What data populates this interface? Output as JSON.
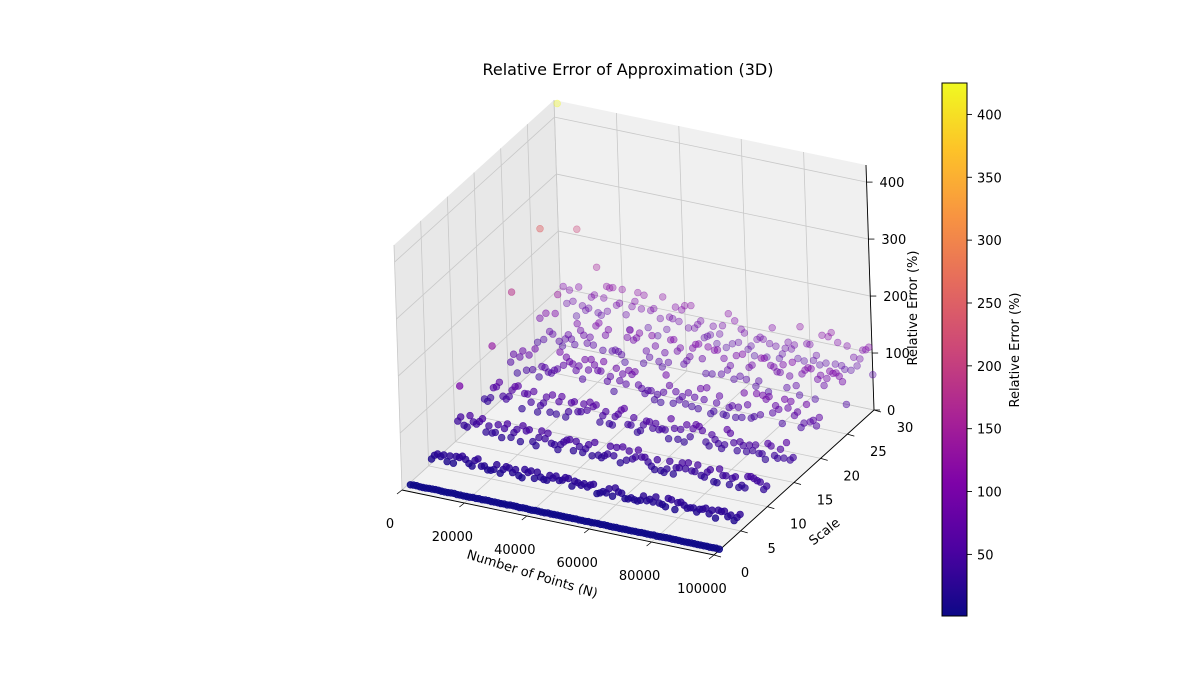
{
  "chart_data": {
    "type": "scatter",
    "projection": "3d",
    "title": "Relative Error of Approximation (3D)",
    "xlabel": "Number of Points (N)",
    "ylabel": "Scale",
    "zlabel": "Relative Error (%)",
    "xlim": [
      0,
      100000
    ],
    "ylim": [
      0,
      30
    ],
    "zlim": [
      0,
      430
    ],
    "xticks": [
      "0",
      "20000",
      "40000",
      "60000",
      "80000",
      "100000"
    ],
    "yticks": [
      "0",
      "5",
      "10",
      "15",
      "20",
      "25",
      "30"
    ],
    "zticks": [
      "0",
      "100",
      "200",
      "300",
      "400"
    ],
    "grid": true,
    "colormap": "plasma",
    "colorbar": {
      "label": "Relative Error (%)",
      "ticks": [
        "50",
        "100",
        "150",
        "200",
        "250",
        "300",
        "350",
        "400"
      ],
      "range": [
        1,
        425
      ]
    },
    "scales": [
      1,
      5,
      10,
      15,
      20,
      25,
      30
    ],
    "points_per_scale": 100,
    "n_range": [
      1000,
      100000
    ],
    "typical_error_by_scale": [
      2,
      20,
      35,
      45,
      60,
      70,
      80
    ],
    "outliers": [
      {
        "x": 1000,
        "y": 30,
        "z": 425
      },
      {
        "x": 3000,
        "y": 25,
        "z": 250
      },
      {
        "x": 6000,
        "y": 30,
        "z": 210
      },
      {
        "x": 2000,
        "y": 20,
        "z": 180
      },
      {
        "x": 12000,
        "y": 30,
        "z": 150
      },
      {
        "x": 4000,
        "y": 15,
        "z": 130
      },
      {
        "x": 8000,
        "y": 25,
        "z": 140
      },
      {
        "x": 15000,
        "y": 30,
        "z": 120
      },
      {
        "x": 2000,
        "y": 10,
        "z": 100
      }
    ]
  }
}
